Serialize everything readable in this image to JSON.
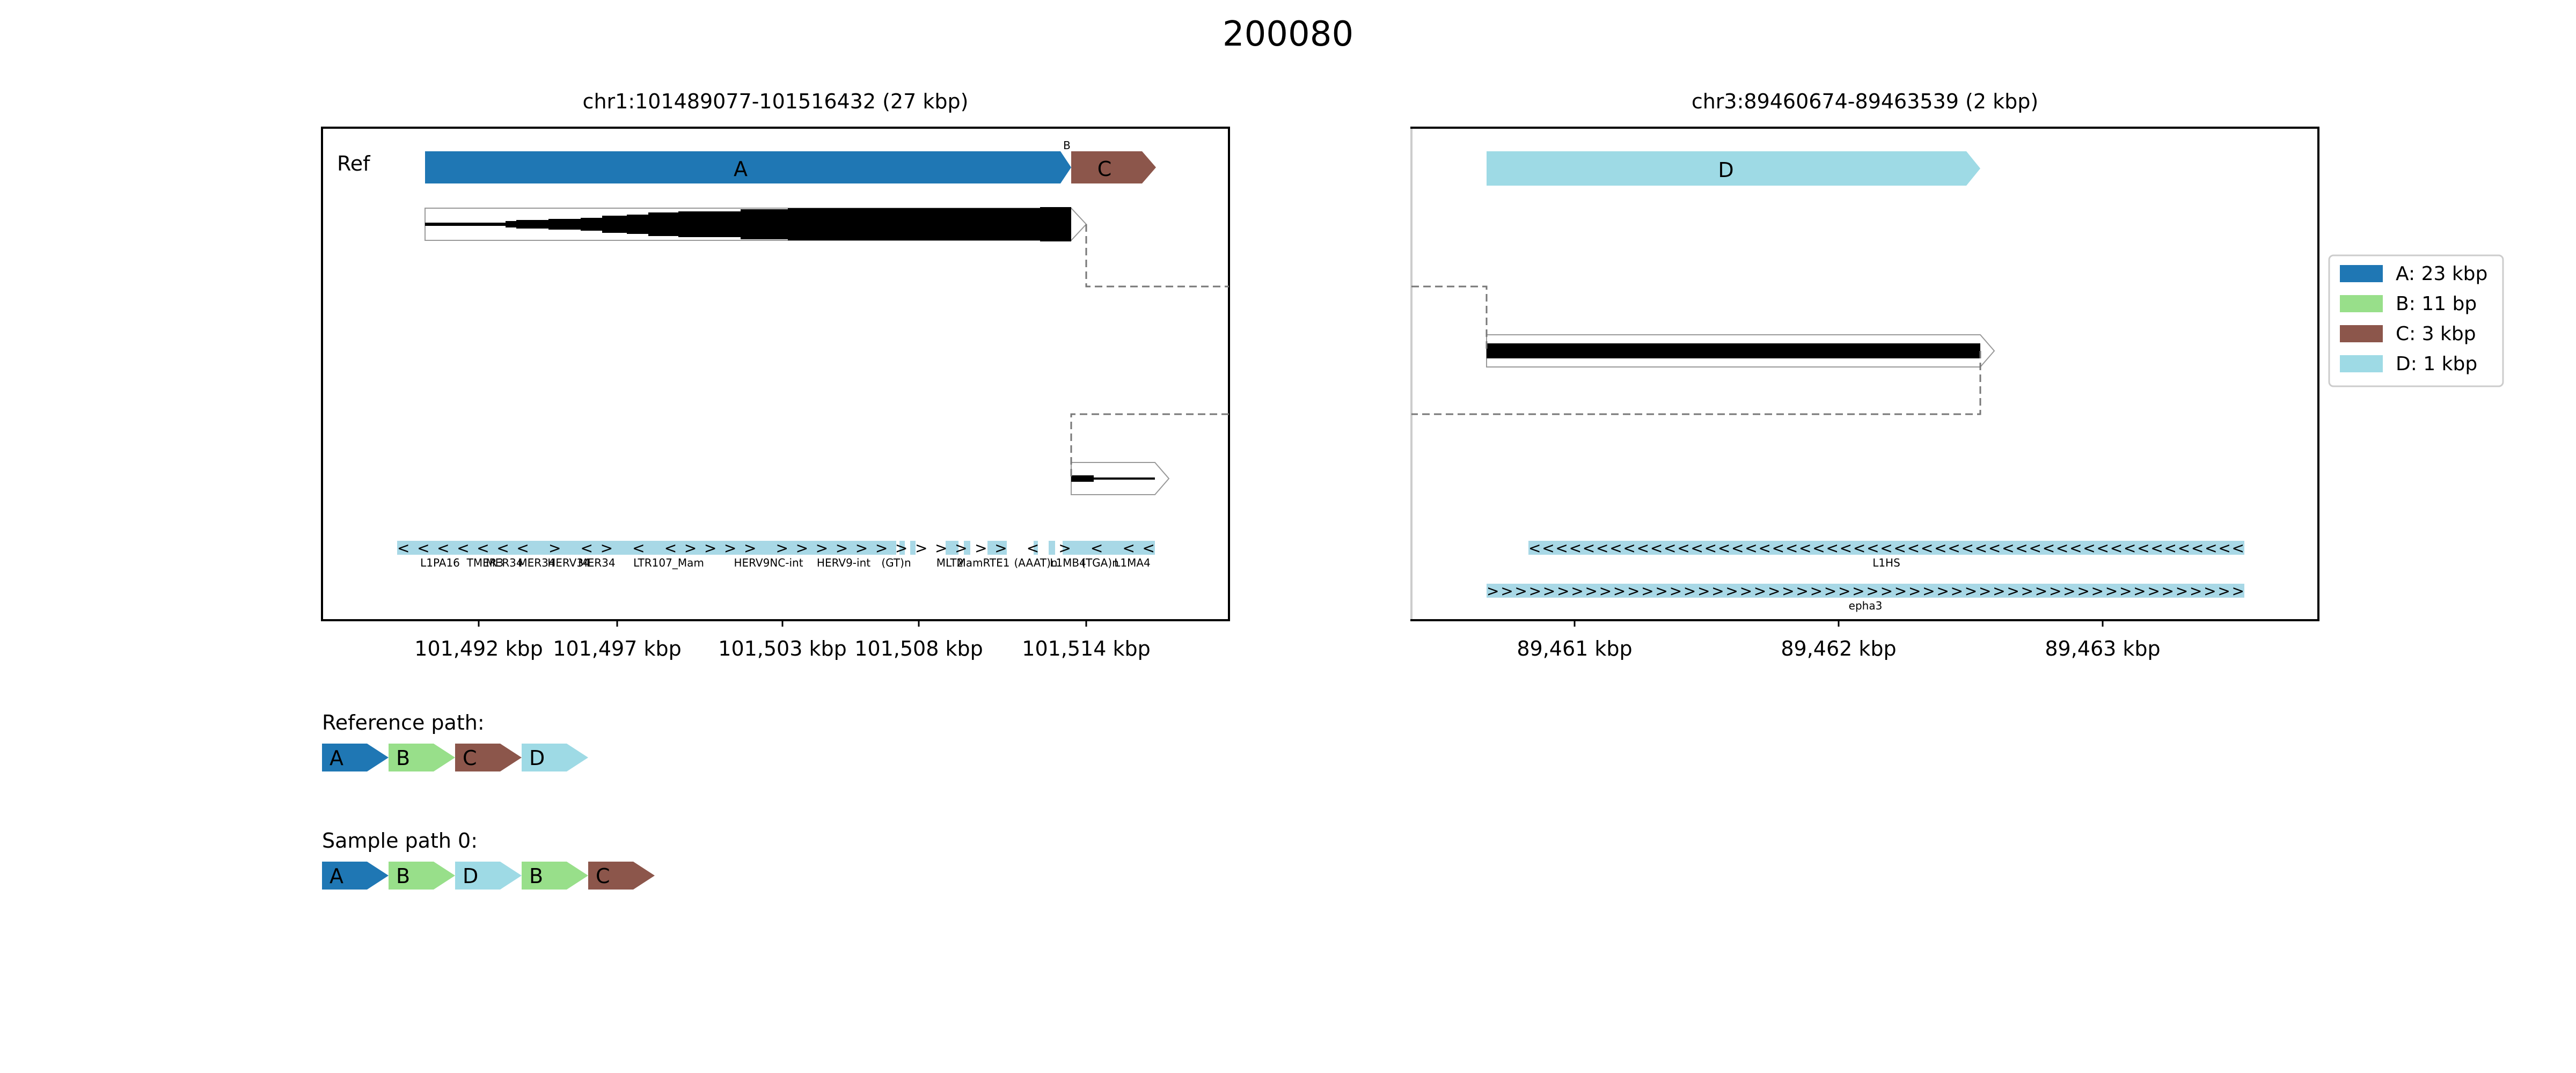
{
  "figure": {
    "title": "200080"
  },
  "palette": {
    "A": "#1f77b4",
    "B": "#98df8a",
    "C": "#8c564b",
    "D": "#9edae5",
    "repeat": "#a8d8e6",
    "dashed": "#777777"
  },
  "panels": {
    "left": {
      "title": "chr1:101489077-101516432 (27 kbp)",
      "ref_label": "Ref",
      "ticks": [
        "101,492 kbp",
        "101,497 kbp",
        "101,503 kbp",
        "101,508 kbp",
        "101,514 kbp"
      ],
      "segments": [
        {
          "id": "A",
          "label": "A"
        },
        {
          "id": "B",
          "label": "B"
        },
        {
          "id": "C",
          "label": "C"
        }
      ],
      "repeat_arrows": "<<<<<<< > <> < <>>>> >>>>>>>>>>>> < > < <<",
      "repeat_labels": [
        "L1PA16",
        "TMER3",
        "MER34",
        "MER34",
        "HERV34",
        "MER34",
        "LTR107_Mam",
        "HERV9NC-int",
        "HERV9-int",
        "(GT)n",
        "MLT2",
        "MamRTE1",
        "(AAAT)n",
        "L1MB4",
        "(TGA)n",
        "L1MA4"
      ]
    },
    "right": {
      "title": "chr3:89460674-89463539 (2 kbp)",
      "ticks": [
        "89,461 kbp",
        "89,462 kbp",
        "89,463 kbp"
      ],
      "segments": [
        {
          "id": "D",
          "label": "D"
        }
      ],
      "repeat_arrows_1": "<<<<<<<<<<<<<<<<<<<<<<<<<<<<<<<<<<<<<<<<<<<<<<<<<<<<<",
      "repeat_label_1": "L1HS",
      "repeat_arrows_2": ">>>>>>>>>>>>>>>>>>>>>>>>>>>>>>>>>>>>>>>>>>>>>>>>>>>>>>",
      "repeat_label_2": "epha3"
    }
  },
  "legend": [
    {
      "id": "A",
      "label": "A: 23 kbp"
    },
    {
      "id": "B",
      "label": "B: 11 bp"
    },
    {
      "id": "C",
      "label": "C: 3 kbp"
    },
    {
      "id": "D",
      "label": "D: 1 kbp"
    }
  ],
  "paths": {
    "reference": {
      "title": "Reference path:",
      "nodes": [
        "A",
        "B",
        "C",
        "D"
      ]
    },
    "sample0": {
      "title": "Sample path 0:",
      "nodes": [
        "A",
        "B",
        "D",
        "B",
        "C"
      ]
    }
  }
}
